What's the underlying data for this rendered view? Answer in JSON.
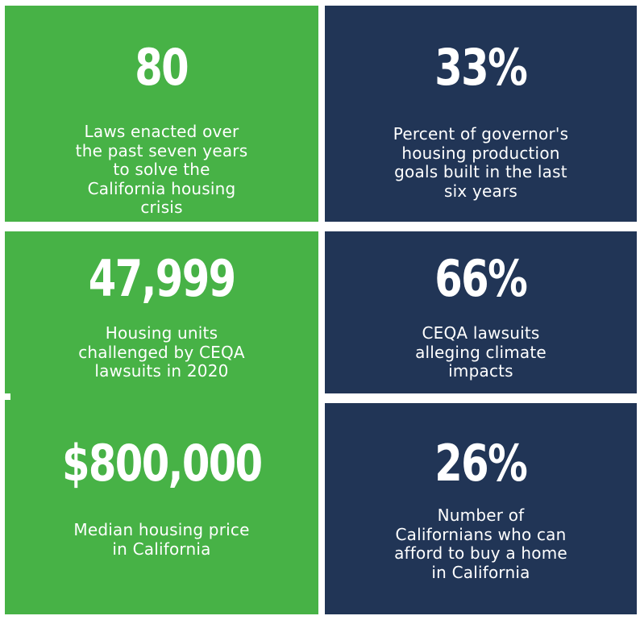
{
  "colors": {
    "green": "#47b246",
    "navy": "#213556",
    "text": "#ffffff"
  },
  "stats": [
    {
      "value": "80",
      "label_lines": [
        "Laws enacted over",
        "the past seven years",
        "to solve the",
        "California housing",
        "crisis"
      ]
    },
    {
      "value": "33%",
      "label_lines": [
        "Percent of governor's",
        "housing production",
        "goals built in the last",
        "six years"
      ]
    },
    {
      "value": "47,999",
      "label_lines": [
        "Housing units",
        "challenged by CEQA",
        "lawsuits in 2020"
      ]
    },
    {
      "value": "66%",
      "label_lines": [
        "CEQA lawsuits",
        "alleging climate",
        "impacts"
      ]
    },
    {
      "value": "$800,000",
      "label_lines": [
        "Median housing price",
        "in California"
      ]
    },
    {
      "value": "26%",
      "label_lines": [
        "Number of",
        "Californians who can",
        "afford to buy a home",
        "in California"
      ]
    }
  ]
}
